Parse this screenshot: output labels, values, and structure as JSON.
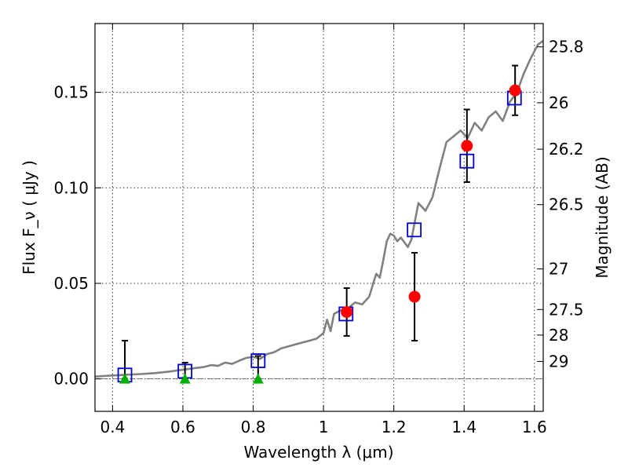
{
  "chart_data": {
    "type": "scatter",
    "xlabel": "Wavelength λ (μm)",
    "ylabel": "Flux F_ν ( μJy )",
    "y2label": "Magnitude (AB)",
    "xlim": [
      0.35,
      1.625
    ],
    "ylim": [
      -0.017,
      0.186
    ],
    "grid": true,
    "x_ticks": [
      0.4,
      0.6,
      0.8,
      1.0,
      1.2,
      1.4,
      1.6
    ],
    "x_tick_labels": [
      "0.4",
      "0.6",
      "0.8",
      "1",
      "1.2",
      "1.4",
      "1.6"
    ],
    "y_ticks": [
      0.0,
      0.05,
      0.1,
      0.15
    ],
    "y_tick_labels": [
      "0.00",
      "0.05",
      "0.10",
      "0.15"
    ],
    "mag_ticks": [
      25.8,
      26,
      26.2,
      26.5,
      27,
      27.5,
      28,
      29
    ],
    "mag_tick_labels": [
      "25.8",
      "26",
      "26.2",
      "26.5",
      "27",
      "27.5",
      "28",
      "29"
    ],
    "zero_line": 0.0,
    "series": [
      {
        "kind": "spectrum",
        "color": "#808080",
        "points": [
          [
            0.35,
            0.0012
          ],
          [
            0.4,
            0.0018
          ],
          [
            0.44,
            0.0022
          ],
          [
            0.48,
            0.0025
          ],
          [
            0.52,
            0.003
          ],
          [
            0.56,
            0.0038
          ],
          [
            0.6,
            0.0048
          ],
          [
            0.63,
            0.0055
          ],
          [
            0.66,
            0.0062
          ],
          [
            0.68,
            0.0072
          ],
          [
            0.7,
            0.0068
          ],
          [
            0.72,
            0.0085
          ],
          [
            0.74,
            0.0078
          ],
          [
            0.76,
            0.0095
          ],
          [
            0.78,
            0.011
          ],
          [
            0.8,
            0.0115
          ],
          [
            0.82,
            0.0105
          ],
          [
            0.84,
            0.013
          ],
          [
            0.86,
            0.014
          ],
          [
            0.88,
            0.016
          ],
          [
            0.9,
            0.017
          ],
          [
            0.92,
            0.018
          ],
          [
            0.94,
            0.019
          ],
          [
            0.96,
            0.02
          ],
          [
            0.98,
            0.021
          ],
          [
            1.0,
            0.024
          ],
          [
            1.01,
            0.031
          ],
          [
            1.02,
            0.025
          ],
          [
            1.03,
            0.034
          ],
          [
            1.05,
            0.036
          ],
          [
            1.07,
            0.037
          ],
          [
            1.09,
            0.04
          ],
          [
            1.11,
            0.039
          ],
          [
            1.13,
            0.043
          ],
          [
            1.15,
            0.055
          ],
          [
            1.16,
            0.053
          ],
          [
            1.17,
            0.062
          ],
          [
            1.18,
            0.072
          ],
          [
            1.19,
            0.076
          ],
          [
            1.2,
            0.075
          ],
          [
            1.21,
            0.072
          ],
          [
            1.22,
            0.074
          ],
          [
            1.24,
            0.069
          ],
          [
            1.25,
            0.073
          ],
          [
            1.27,
            0.092
          ],
          [
            1.29,
            0.088
          ],
          [
            1.31,
            0.095
          ],
          [
            1.33,
            0.11
          ],
          [
            1.35,
            0.124
          ],
          [
            1.37,
            0.127
          ],
          [
            1.39,
            0.13
          ],
          [
            1.41,
            0.126
          ],
          [
            1.43,
            0.134
          ],
          [
            1.45,
            0.13
          ],
          [
            1.47,
            0.137
          ],
          [
            1.49,
            0.14
          ],
          [
            1.51,
            0.135
          ],
          [
            1.53,
            0.145
          ],
          [
            1.55,
            0.15
          ],
          [
            1.57,
            0.16
          ],
          [
            1.59,
            0.168
          ],
          [
            1.61,
            0.175
          ],
          [
            1.625,
            0.177
          ]
        ]
      },
      {
        "kind": "model",
        "color": "#0000cc",
        "x": [
          0.435,
          0.606,
          0.814,
          1.064,
          1.258,
          1.408,
          1.543
        ],
        "y": [
          0.002,
          0.004,
          0.0095,
          0.034,
          0.078,
          0.114,
          0.147
        ]
      },
      {
        "kind": "detection",
        "color": "#ff0000",
        "x": [
          1.066,
          1.259,
          1.408,
          1.545
        ],
        "y": [
          0.035,
          0.043,
          0.122,
          0.151
        ],
        "yerr": [
          0.0125,
          0.023,
          0.019,
          0.013
        ]
      },
      {
        "kind": "upper-limit",
        "color": "#00b000",
        "x": [
          0.435,
          0.606,
          0.814
        ],
        "y": [
          0.0,
          0.0,
          0.0
        ],
        "err_low": [
          0.0,
          0.0,
          0.0
        ],
        "err_high": [
          0.02,
          0.0085,
          0.012
        ]
      }
    ]
  }
}
